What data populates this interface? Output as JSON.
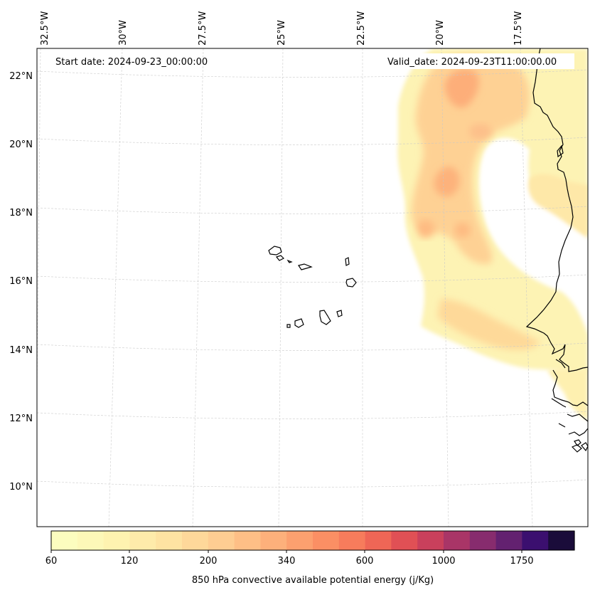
{
  "header": {
    "start_date": "Start date: 2024-09-23_00:00:00",
    "valid_date": "Valid_date: 2024-09-23T11:00:00.00"
  },
  "longitude_labels": [
    "32.5°W",
    "30°W",
    "27.5°W",
    "25°W",
    "22.5°W",
    "20°W",
    "17.5°W"
  ],
  "latitude_labels": [
    "22°N",
    "20°N",
    "18°N",
    "16°N",
    "14°N",
    "12°N",
    "10°N"
  ],
  "colorbar": {
    "title": "850 hPa convective available potential energy (j/Kg)",
    "tick_labels": [
      "60",
      "120",
      "200",
      "340",
      "600",
      "1000",
      "1750"
    ],
    "colors": [
      "#fcfdbf",
      "#fdf8b8",
      "#fef3b0",
      "#feebaa",
      "#fee3a2",
      "#fed89a",
      "#fecd92",
      "#febf86",
      "#fdb07b",
      "#fca06f",
      "#fb8f64",
      "#f77c5c",
      "#ef6656",
      "#e05055",
      "#c9405c",
      "#a93567",
      "#872c6e",
      "#632170",
      "#3b0f6f",
      "#1a0c3a"
    ]
  }
}
